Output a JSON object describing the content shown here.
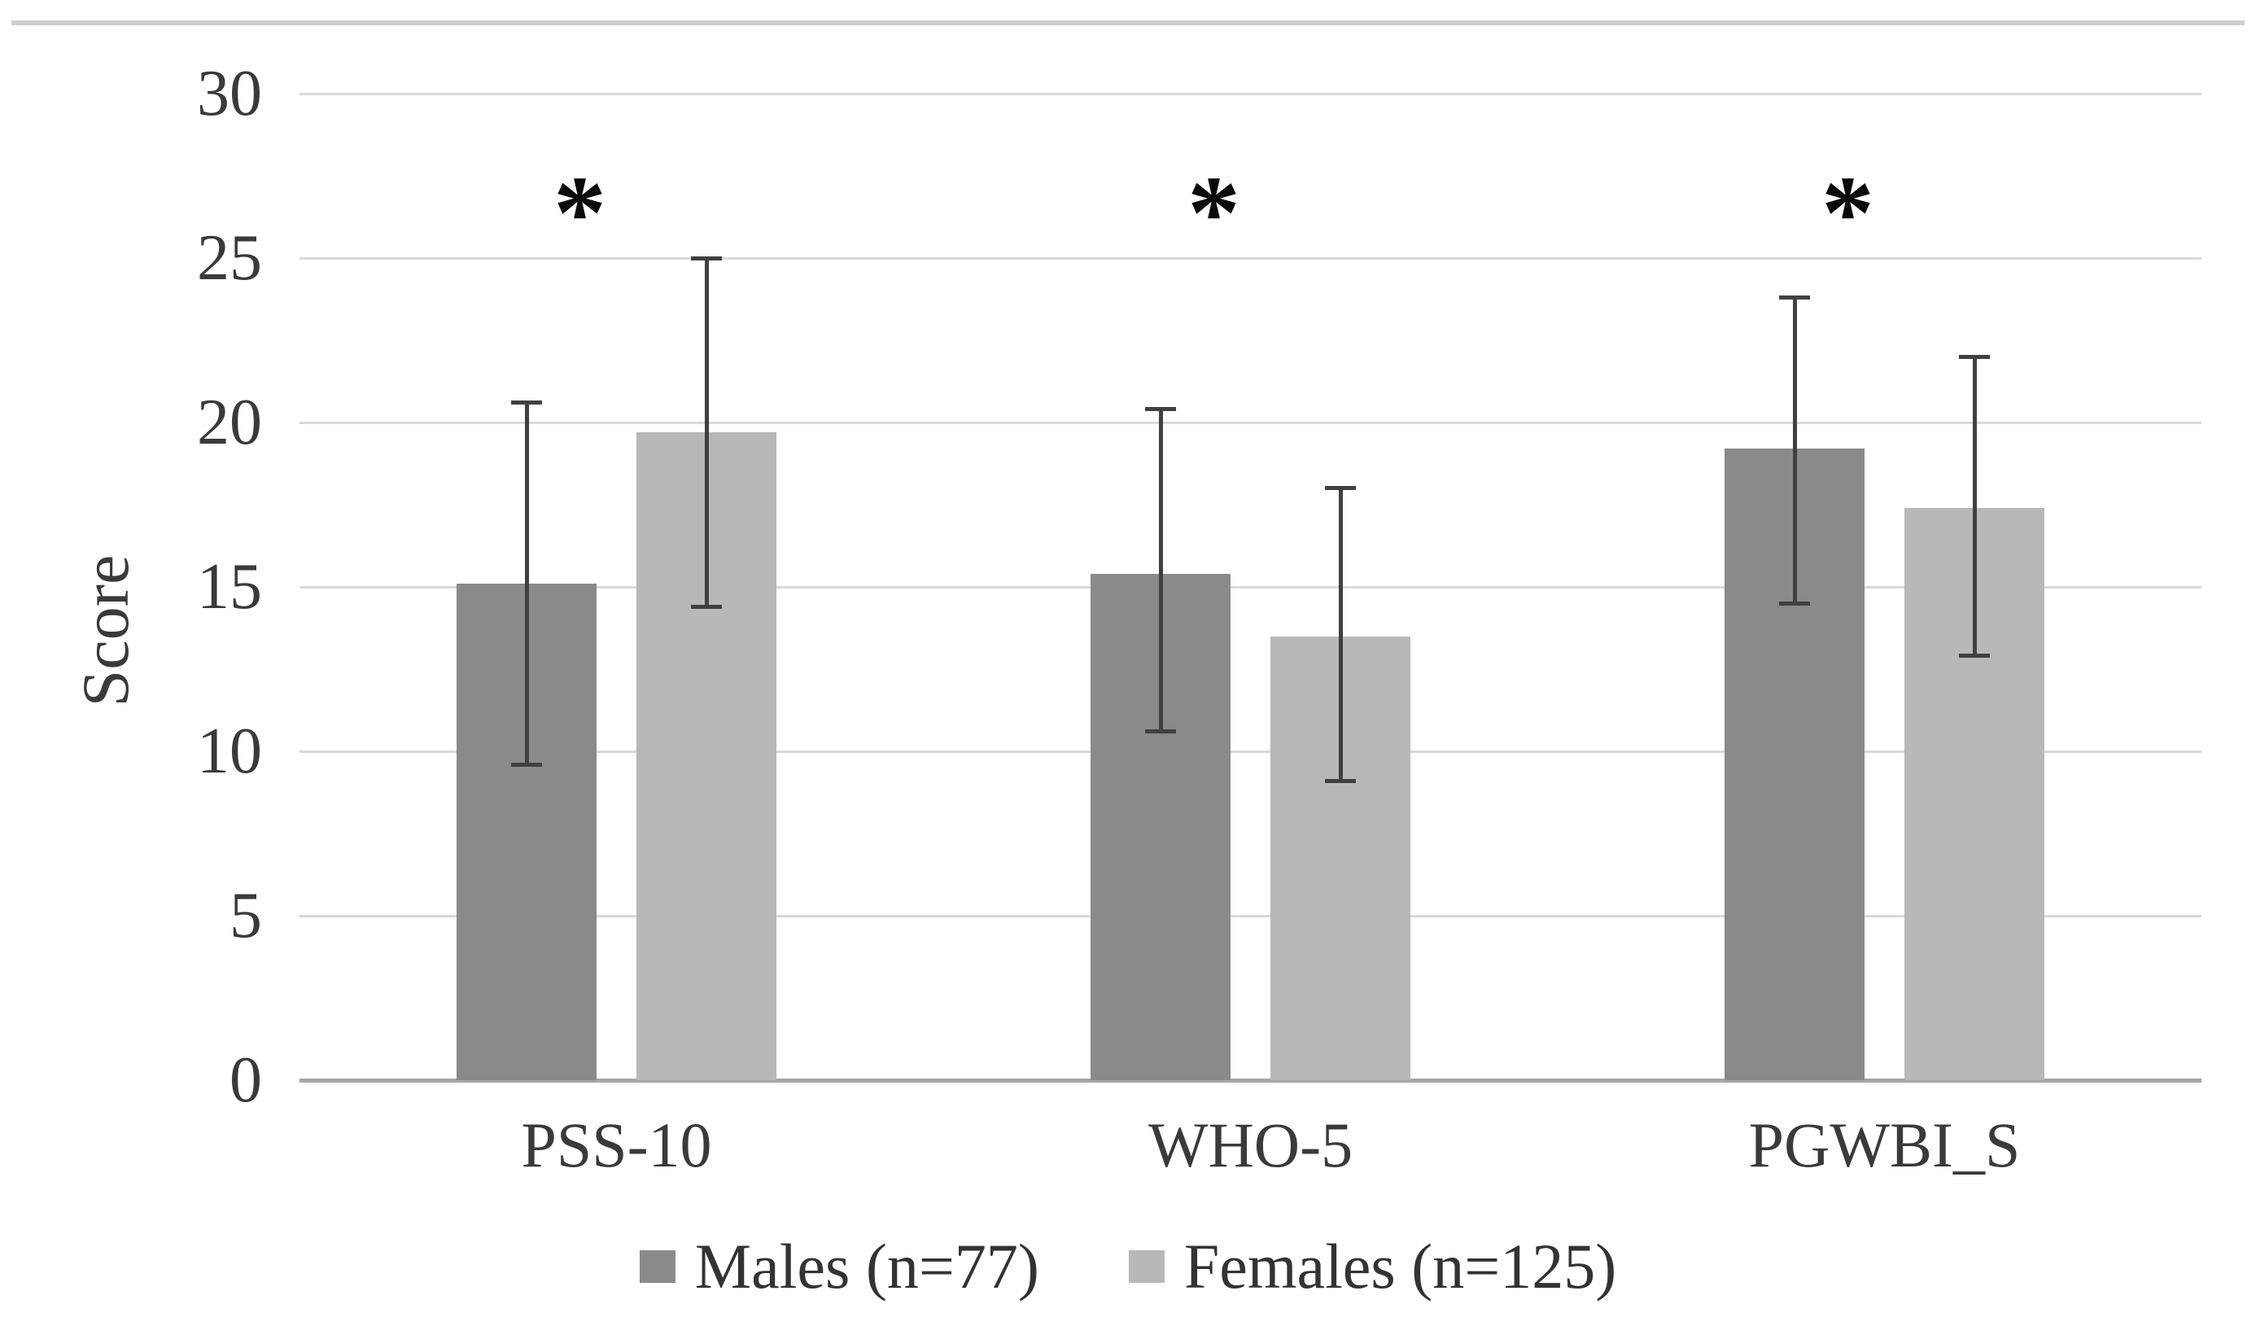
{
  "chart_data": {
    "type": "bar",
    "title": "",
    "categories": [
      "PSS-10",
      "WHO-5",
      "PGWBI_S"
    ],
    "series": [
      {
        "name": "Males (n=77)",
        "color": "#8a8a8a",
        "values": [
          15.1,
          15.4,
          19.2
        ],
        "err_low": [
          9.6,
          10.6,
          14.5
        ],
        "err_high": [
          20.6,
          20.4,
          23.8
        ]
      },
      {
        "name": "Females (n=125)",
        "color": "#b8b8b8",
        "values": [
          19.7,
          13.5,
          17.4
        ],
        "err_low": [
          14.4,
          9.1,
          12.9
        ],
        "err_high": [
          25.0,
          18.0,
          22.0
        ]
      }
    ],
    "annotations": [
      {
        "text": "*",
        "category_index": 0,
        "y": 26.6
      },
      {
        "text": "*",
        "category_index": 1,
        "y": 26.6
      },
      {
        "text": "*",
        "category_index": 2,
        "y": 26.6
      }
    ],
    "xlabel": "",
    "ylabel": "Score",
    "ylim": [
      0,
      30
    ],
    "yticks": [
      0,
      5,
      10,
      15,
      20,
      25,
      30
    ],
    "grid": "horizontal",
    "legend_position": "bottom",
    "error_bar_color": "#404040",
    "gridline_color": "#d9d9d9",
    "axis_line_color": "#a6a6a6",
    "text_color": "#3a3a3a"
  }
}
